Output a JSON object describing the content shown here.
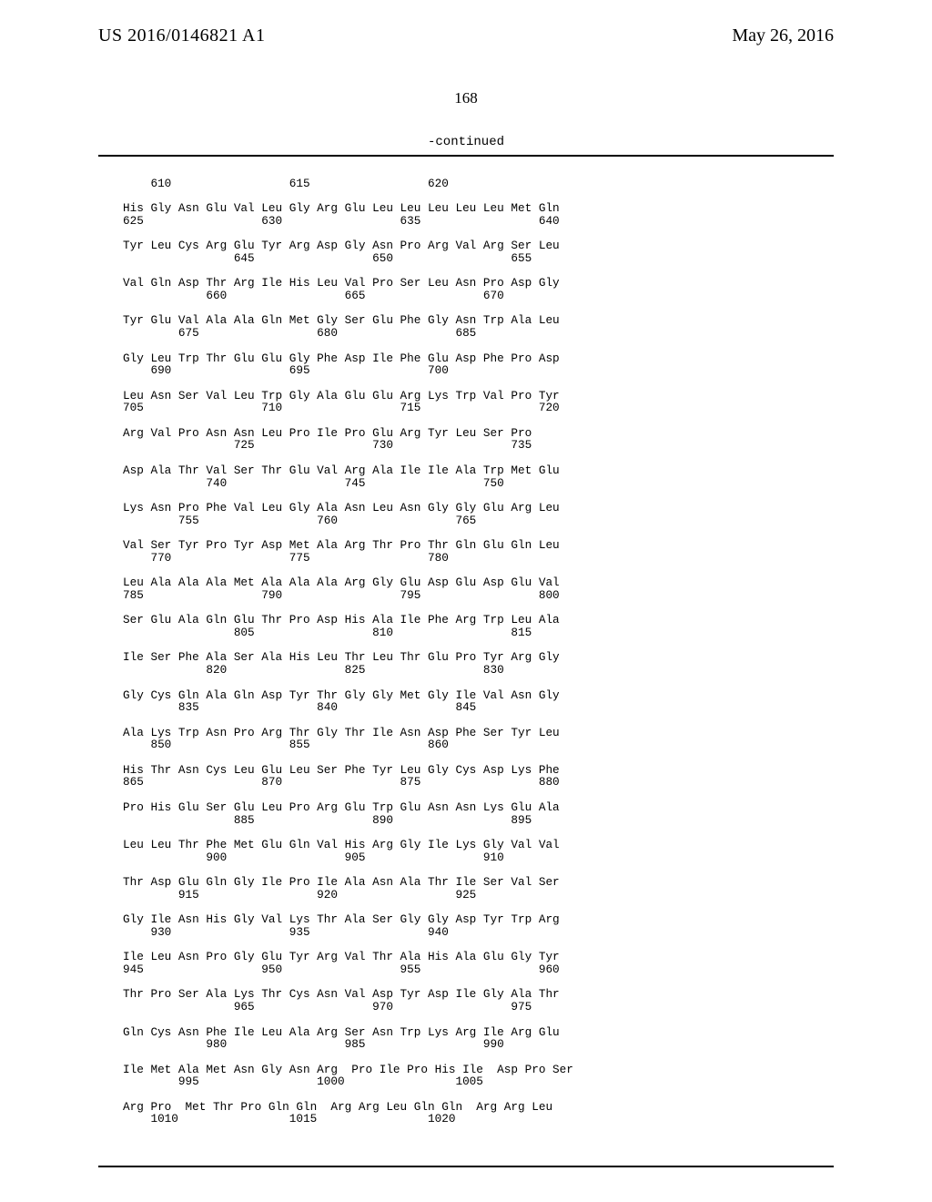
{
  "header": {
    "left": "US 2016/0146821 A1",
    "right": "May 26, 2016",
    "page_number": "168",
    "continued": "-continued"
  },
  "sequence": {
    "col_width_chars": 4,
    "groups": [
      {
        "num_row_nums": [
          610,
          615,
          620
        ],
        "aa": [
          "His",
          "Gly",
          "Asn",
          "Glu",
          "Val",
          "Leu",
          "Gly",
          "Arg",
          "Glu",
          "Leu",
          "Leu",
          "Leu",
          "Leu",
          "Leu",
          "Met",
          "Gln"
        ],
        "below_nums": [
          625,
          630,
          635,
          640
        ]
      },
      {
        "aa": [
          "Tyr",
          "Leu",
          "Cys",
          "Arg",
          "Glu",
          "Tyr",
          "Arg",
          "Asp",
          "Gly",
          "Asn",
          "Pro",
          "Arg",
          "Val",
          "Arg",
          "Ser",
          "Leu"
        ],
        "below_nums": [
          645,
          650,
          655
        ]
      },
      {
        "aa": [
          "Val",
          "Gln",
          "Asp",
          "Thr",
          "Arg",
          "Ile",
          "His",
          "Leu",
          "Val",
          "Pro",
          "Ser",
          "Leu",
          "Asn",
          "Pro",
          "Asp",
          "Gly"
        ],
        "below_nums": [
          660,
          665,
          670
        ]
      },
      {
        "aa": [
          "Tyr",
          "Glu",
          "Val",
          "Ala",
          "Ala",
          "Gln",
          "Met",
          "Gly",
          "Ser",
          "Glu",
          "Phe",
          "Gly",
          "Asn",
          "Trp",
          "Ala",
          "Leu"
        ],
        "below_nums": [
          675,
          680,
          685
        ]
      },
      {
        "aa": [
          "Gly",
          "Leu",
          "Trp",
          "Thr",
          "Glu",
          "Glu",
          "Gly",
          "Phe",
          "Asp",
          "Ile",
          "Phe",
          "Glu",
          "Asp",
          "Phe",
          "Pro",
          "Asp"
        ],
        "below_nums": [
          690,
          695,
          700
        ]
      },
      {
        "aa": [
          "Leu",
          "Asn",
          "Ser",
          "Val",
          "Leu",
          "Trp",
          "Gly",
          "Ala",
          "Glu",
          "Glu",
          "Arg",
          "Lys",
          "Trp",
          "Val",
          "Pro",
          "Tyr"
        ],
        "below_nums": [
          705,
          710,
          715,
          720
        ]
      },
      {
        "aa": [
          "Arg",
          "Val",
          "Pro",
          "Asn",
          "Asn",
          "Leu",
          "Pro",
          "Ile",
          "Pro",
          "Glu",
          "Arg",
          "Tyr",
          "Leu",
          "Ser",
          "Pro"
        ],
        "below_nums": [
          725,
          730,
          735
        ],
        "start_col": 1
      },
      {
        "aa": [
          "Asp",
          "Ala",
          "Thr",
          "Val",
          "Ser",
          "Thr",
          "Glu",
          "Val",
          "Arg",
          "Ala",
          "Ile",
          "Ile",
          "Ala",
          "Trp",
          "Met",
          "Glu"
        ],
        "below_nums": [
          740,
          745,
          750
        ]
      },
      {
        "aa": [
          "Lys",
          "Asn",
          "Pro",
          "Phe",
          "Val",
          "Leu",
          "Gly",
          "Ala",
          "Asn",
          "Leu",
          "Asn",
          "Gly",
          "Gly",
          "Glu",
          "Arg",
          "Leu"
        ],
        "below_nums": [
          755,
          760,
          765
        ]
      },
      {
        "aa": [
          "Val",
          "Ser",
          "Tyr",
          "Pro",
          "Tyr",
          "Asp",
          "Met",
          "Ala",
          "Arg",
          "Thr",
          "Pro",
          "Thr",
          "Gln",
          "Glu",
          "Gln",
          "Leu"
        ],
        "below_nums": [
          770,
          775,
          780
        ]
      },
      {
        "aa": [
          "Leu",
          "Ala",
          "Ala",
          "Ala",
          "Met",
          "Ala",
          "Ala",
          "Ala",
          "Arg",
          "Gly",
          "Glu",
          "Asp",
          "Glu",
          "Asp",
          "Glu",
          "Val"
        ],
        "below_nums": [
          785,
          790,
          795,
          800
        ]
      },
      {
        "aa": [
          "Ser",
          "Glu",
          "Ala",
          "Gln",
          "Glu",
          "Thr",
          "Pro",
          "Asp",
          "His",
          "Ala",
          "Ile",
          "Phe",
          "Arg",
          "Trp",
          "Leu",
          "Ala"
        ],
        "below_nums": [
          805,
          810,
          815
        ]
      },
      {
        "aa": [
          "Ile",
          "Ser",
          "Phe",
          "Ala",
          "Ser",
          "Ala",
          "His",
          "Leu",
          "Thr",
          "Leu",
          "Thr",
          "Glu",
          "Pro",
          "Tyr",
          "Arg",
          "Gly"
        ],
        "below_nums": [
          820,
          825,
          830
        ]
      },
      {
        "aa": [
          "Gly",
          "Cys",
          "Gln",
          "Ala",
          "Gln",
          "Asp",
          "Tyr",
          "Thr",
          "Gly",
          "Gly",
          "Met",
          "Gly",
          "Ile",
          "Val",
          "Asn",
          "Gly"
        ],
        "below_nums": [
          835,
          840,
          845
        ]
      },
      {
        "aa": [
          "Ala",
          "Lys",
          "Trp",
          "Asn",
          "Pro",
          "Arg",
          "Thr",
          "Gly",
          "Thr",
          "Ile",
          "Asn",
          "Asp",
          "Phe",
          "Ser",
          "Tyr",
          "Leu"
        ],
        "below_nums": [
          850,
          855,
          860
        ]
      },
      {
        "aa": [
          "His",
          "Thr",
          "Asn",
          "Cys",
          "Leu",
          "Glu",
          "Leu",
          "Ser",
          "Phe",
          "Tyr",
          "Leu",
          "Gly",
          "Cys",
          "Asp",
          "Lys",
          "Phe"
        ],
        "below_nums": [
          865,
          870,
          875,
          880
        ]
      },
      {
        "aa": [
          "Pro",
          "His",
          "Glu",
          "Ser",
          "Glu",
          "Leu",
          "Pro",
          "Arg",
          "Glu",
          "Trp",
          "Glu",
          "Asn",
          "Asn",
          "Lys",
          "Glu",
          "Ala"
        ],
        "below_nums": [
          885,
          890,
          895
        ]
      },
      {
        "aa": [
          "Leu",
          "Leu",
          "Thr",
          "Phe",
          "Met",
          "Glu",
          "Gln",
          "Val",
          "His",
          "Arg",
          "Gly",
          "Ile",
          "Lys",
          "Gly",
          "Val",
          "Val"
        ],
        "below_nums": [
          900,
          905,
          910
        ]
      },
      {
        "aa": [
          "Thr",
          "Asp",
          "Glu",
          "Gln",
          "Gly",
          "Ile",
          "Pro",
          "Ile",
          "Ala",
          "Asn",
          "Ala",
          "Thr",
          "Ile",
          "Ser",
          "Val",
          "Ser"
        ],
        "below_nums": [
          915,
          920,
          925
        ]
      },
      {
        "aa": [
          "Gly",
          "Ile",
          "Asn",
          "His",
          "Gly",
          "Val",
          "Lys",
          "Thr",
          "Ala",
          "Ser",
          "Gly",
          "Gly",
          "Asp",
          "Tyr",
          "Trp",
          "Arg"
        ],
        "below_nums": [
          930,
          935,
          940
        ]
      },
      {
        "aa": [
          "Ile",
          "Leu",
          "Asn",
          "Pro",
          "Gly",
          "Glu",
          "Tyr",
          "Arg",
          "Val",
          "Thr",
          "Ala",
          "His",
          "Ala",
          "Glu",
          "Gly",
          "Tyr"
        ],
        "below_nums": [
          945,
          950,
          955,
          960
        ]
      },
      {
        "aa": [
          "Thr",
          "Pro",
          "Ser",
          "Ala",
          "Lys",
          "Thr",
          "Cys",
          "Asn",
          "Val",
          "Asp",
          "Tyr",
          "Asp",
          "Ile",
          "Gly",
          "Ala",
          "Thr"
        ],
        "below_nums": [
          965,
          970,
          975
        ]
      },
      {
        "aa": [
          "Gln",
          "Cys",
          "Asn",
          "Phe",
          "Ile",
          "Leu",
          "Ala",
          "Arg",
          "Ser",
          "Asn",
          "Trp",
          "Lys",
          "Arg",
          "Ile",
          "Arg",
          "Glu"
        ],
        "below_nums": [
          980,
          985,
          990
        ]
      },
      {
        "aa": [
          "Ile",
          "Met",
          "Ala",
          "Met",
          "Asn",
          "Gly",
          "Asn",
          "Arg",
          "",
          "Pro",
          "Ile",
          "Pro",
          "His",
          "Ile",
          "",
          "Asp",
          "Pro",
          "Ser"
        ],
        "below_nums": [
          995,
          1000,
          1005
        ],
        "raw_aa": "Ile Met Ala Met Asn Gly Asn Arg  Pro Ile Pro His Ile  Asp Pro Ser",
        "raw_nums": "        995                 1000                1005"
      },
      {
        "raw_aa": "Arg Pro  Met Thr Pro Gln Gln  Arg Arg Leu Gln Gln  Arg Arg Leu",
        "raw_nums": "    1010                1015                1020"
      }
    ]
  }
}
